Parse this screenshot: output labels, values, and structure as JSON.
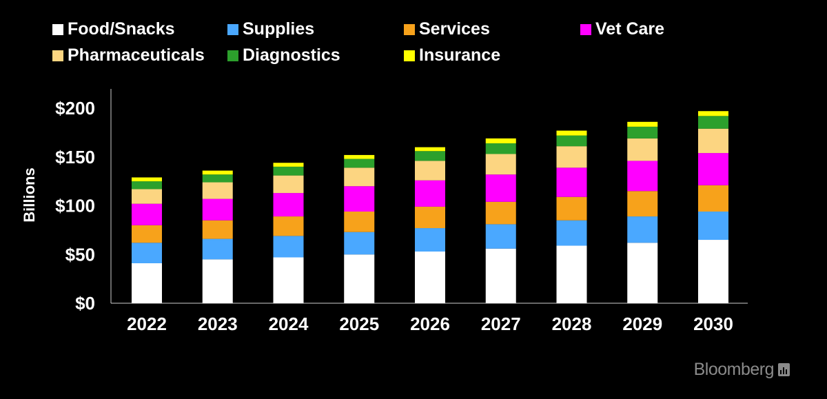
{
  "chart_data": {
    "type": "bar",
    "stacked": true,
    "categories": [
      "2022",
      "2023",
      "2024",
      "2025",
      "2026",
      "2027",
      "2028",
      "2029",
      "2030"
    ],
    "series": [
      {
        "name": "Food/Snacks",
        "color": "#ffffff",
        "values": [
          41,
          45,
          47,
          50,
          53,
          56,
          59,
          62,
          65
        ]
      },
      {
        "name": "Supplies",
        "color": "#4aa8ff",
        "values": [
          21,
          21,
          22,
          23,
          24,
          25,
          26,
          27,
          29
        ]
      },
      {
        "name": "Services",
        "color": "#f7a21b",
        "values": [
          18,
          19,
          20,
          21,
          22,
          23,
          24,
          26,
          27
        ]
      },
      {
        "name": "Vet Care",
        "color": "#ff00ff",
        "values": [
          22,
          22,
          24,
          26,
          27,
          28,
          30,
          31,
          33
        ]
      },
      {
        "name": "Pharmaceuticals",
        "color": "#fcd581",
        "values": [
          15,
          17,
          18,
          19,
          20,
          21,
          22,
          23,
          25
        ]
      },
      {
        "name": "Diagnostics",
        "color": "#2ca02c",
        "values": [
          8,
          8,
          9,
          9,
          10,
          11,
          11,
          12,
          13
        ]
      },
      {
        "name": "Insurance",
        "color": "#ffff00",
        "values": [
          4,
          4,
          4,
          4,
          4,
          5,
          5,
          5,
          5
        ]
      }
    ],
    "ylabel": "Billions",
    "ylim": [
      0,
      220
    ],
    "yticks": [
      {
        "value": 0,
        "label": "$0"
      },
      {
        "value": 50,
        "label": "$50"
      },
      {
        "value": 100,
        "label": "$100"
      },
      {
        "value": 150,
        "label": "$150"
      },
      {
        "value": 200,
        "label": "$200"
      }
    ],
    "grid": false,
    "legend_position": "top"
  },
  "branding": {
    "text": "Bloomberg"
  }
}
